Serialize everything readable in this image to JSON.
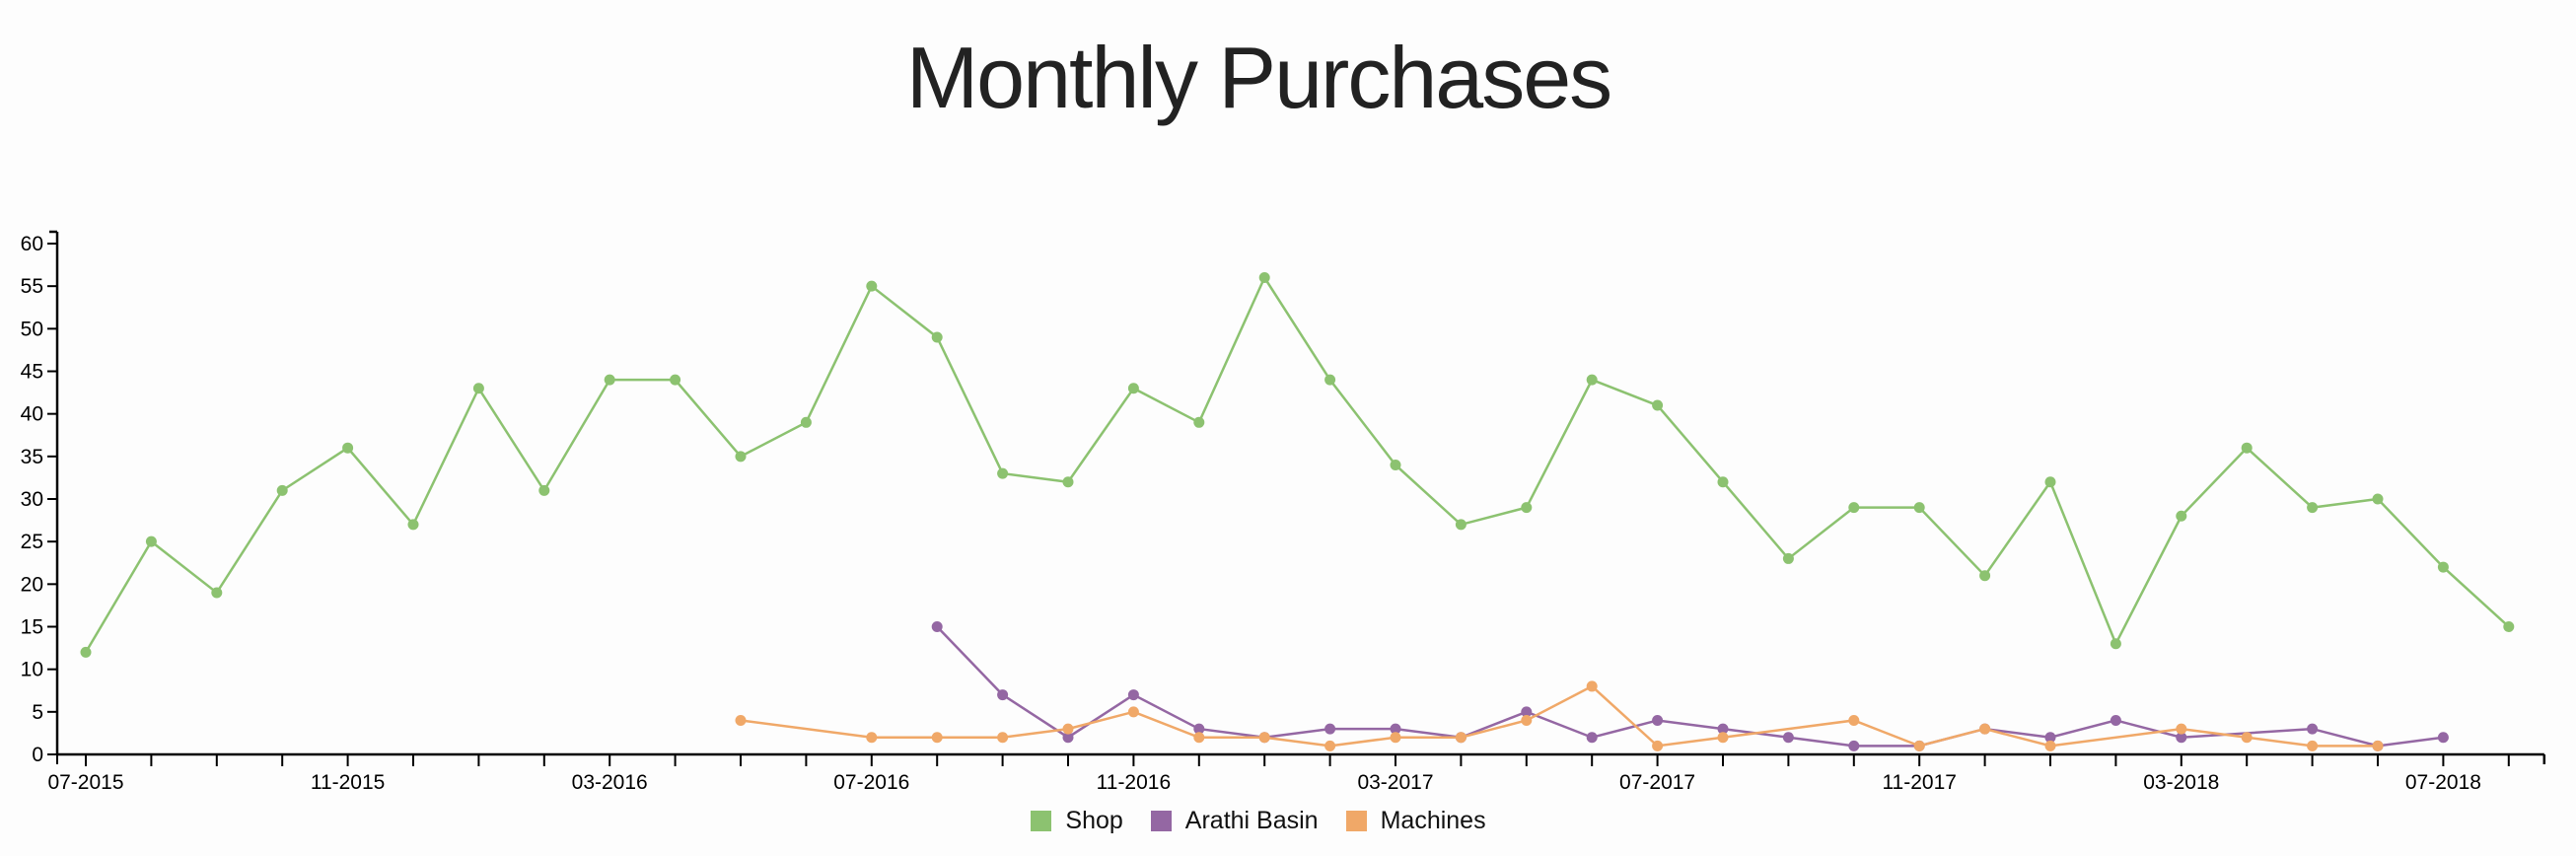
{
  "title": "Monthly Purchases",
  "chart_data": {
    "type": "line",
    "title": "Monthly Purchases",
    "xlabel": "",
    "ylabel": "",
    "ylim": [
      0,
      60
    ],
    "yticks": [
      0,
      5,
      10,
      15,
      20,
      25,
      30,
      35,
      40,
      45,
      50,
      55,
      60
    ],
    "x": [
      "07-2015",
      "08-2015",
      "09-2015",
      "10-2015",
      "11-2015",
      "12-2015",
      "01-2016",
      "02-2016",
      "03-2016",
      "04-2016",
      "05-2016",
      "06-2016",
      "07-2016",
      "08-2016",
      "09-2016",
      "10-2016",
      "11-2016",
      "12-2016",
      "01-2017",
      "02-2017",
      "03-2017",
      "04-2017",
      "05-2017",
      "06-2017",
      "07-2017",
      "08-2017",
      "09-2017",
      "10-2017",
      "11-2017",
      "12-2017",
      "01-2018",
      "02-2018",
      "03-2018",
      "04-2018",
      "05-2018",
      "06-2018",
      "07-2018",
      "08-2018"
    ],
    "xtick_labels": [
      "07-2015",
      "11-2015",
      "03-2016",
      "07-2016",
      "11-2016",
      "03-2017",
      "07-2017",
      "11-2017",
      "03-2018",
      "07-2018"
    ],
    "series": [
      {
        "name": "Shop",
        "color": "#8cc270",
        "values": [
          12,
          25,
          19,
          31,
          36,
          27,
          43,
          31,
          44,
          44,
          35,
          39,
          55,
          49,
          33,
          32,
          43,
          39,
          56,
          44,
          34,
          27,
          29,
          44,
          41,
          32,
          23,
          29,
          29,
          21,
          32,
          13,
          28,
          36,
          29,
          30,
          22,
          15
        ]
      },
      {
        "name": "Arathi Basin",
        "color": "#9467a3",
        "values": [
          null,
          null,
          null,
          null,
          null,
          null,
          null,
          null,
          null,
          null,
          null,
          null,
          null,
          15,
          7,
          2,
          7,
          3,
          2,
          3,
          3,
          2,
          5,
          2,
          4,
          3,
          2,
          1,
          1,
          3,
          2,
          4,
          2,
          null,
          3,
          1,
          2,
          null
        ]
      },
      {
        "name": "Machines",
        "color": "#f0a868",
        "values": [
          null,
          null,
          null,
          null,
          null,
          null,
          null,
          null,
          null,
          null,
          4,
          null,
          2,
          2,
          2,
          3,
          5,
          2,
          2,
          1,
          2,
          2,
          4,
          8,
          1,
          2,
          null,
          4,
          1,
          3,
          1,
          null,
          3,
          2,
          1,
          1,
          null,
          null
        ]
      }
    ],
    "legend_position": "bottom",
    "grid": false
  },
  "legend": [
    {
      "label": "Shop",
      "color": "#8cc270"
    },
    {
      "label": "Arathi Basin",
      "color": "#9467a3"
    },
    {
      "label": "Machines",
      "color": "#f0a868"
    }
  ]
}
